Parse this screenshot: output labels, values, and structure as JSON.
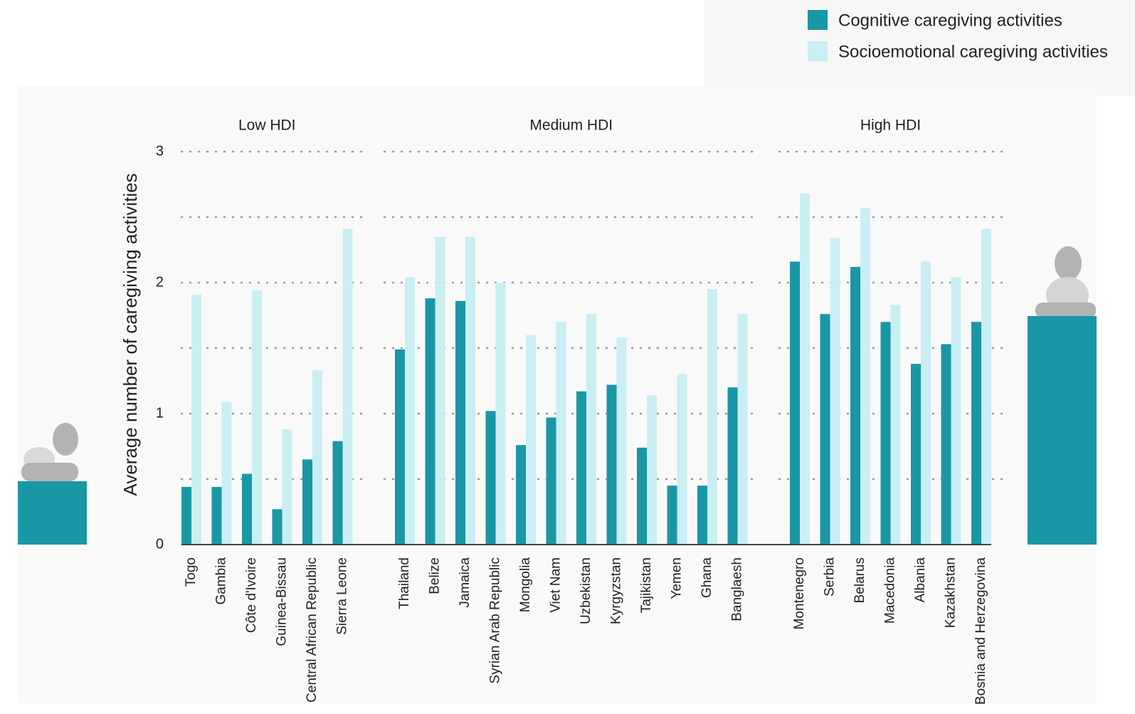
{
  "chart_data": {
    "type": "grouped-bar",
    "y_axis_label": "Average number of caregiving activities",
    "groups": [
      {
        "label": "Low HDI",
        "categories": [
          "Togo",
          "Gambia",
          "Côte d'Ivoire",
          "Guinea-Bissau",
          "Central African Republic",
          "Sierra Leone"
        ]
      },
      {
        "label": "Medium HDI",
        "categories": [
          "Thailand",
          "Belize",
          "Jamaica",
          "Syrian Arab Republic",
          "Mongolia",
          "Viet Nam",
          "Uzbekistan",
          "Kyrgyzstan",
          "Tajikistan",
          "Yemen",
          "Ghana",
          "Banglaesh"
        ]
      },
      {
        "label": "High HDI",
        "categories": [
          "Montenegro",
          "Serbia",
          "Belarus",
          "Macedonia",
          "Albania",
          "Kazakhstan",
          "Bosnia and Herzegovina"
        ]
      }
    ],
    "series": [
      {
        "name": "Cognitive caregiving activities",
        "color": "#1a97a5",
        "values": [
          0.44,
          0.44,
          0.54,
          0.27,
          0.65,
          0.79,
          1.49,
          1.88,
          1.86,
          1.02,
          0.76,
          0.97,
          1.17,
          1.22,
          0.74,
          0.45,
          0.45,
          1.2,
          2.16,
          1.76,
          2.12,
          1.7,
          1.38,
          1.53,
          1.7
        ]
      },
      {
        "name": "Socioemotional caregiving activities",
        "color": "#c9eef3",
        "values": [
          1.91,
          1.09,
          1.94,
          0.88,
          1.33,
          2.41,
          2.04,
          2.35,
          2.35,
          2.0,
          1.6,
          1.7,
          1.76,
          1.58,
          1.14,
          1.3,
          1.95,
          1.76,
          2.68,
          2.34,
          2.57,
          1.83,
          2.16,
          2.04,
          2.41
        ]
      }
    ],
    "ylim": [
      0,
      3
    ],
    "yticks": [
      0,
      1,
      2,
      3
    ],
    "grid_yticks": [
      0.5,
      1,
      1.5,
      2,
      2.5,
      3
    ],
    "grid": true
  }
}
